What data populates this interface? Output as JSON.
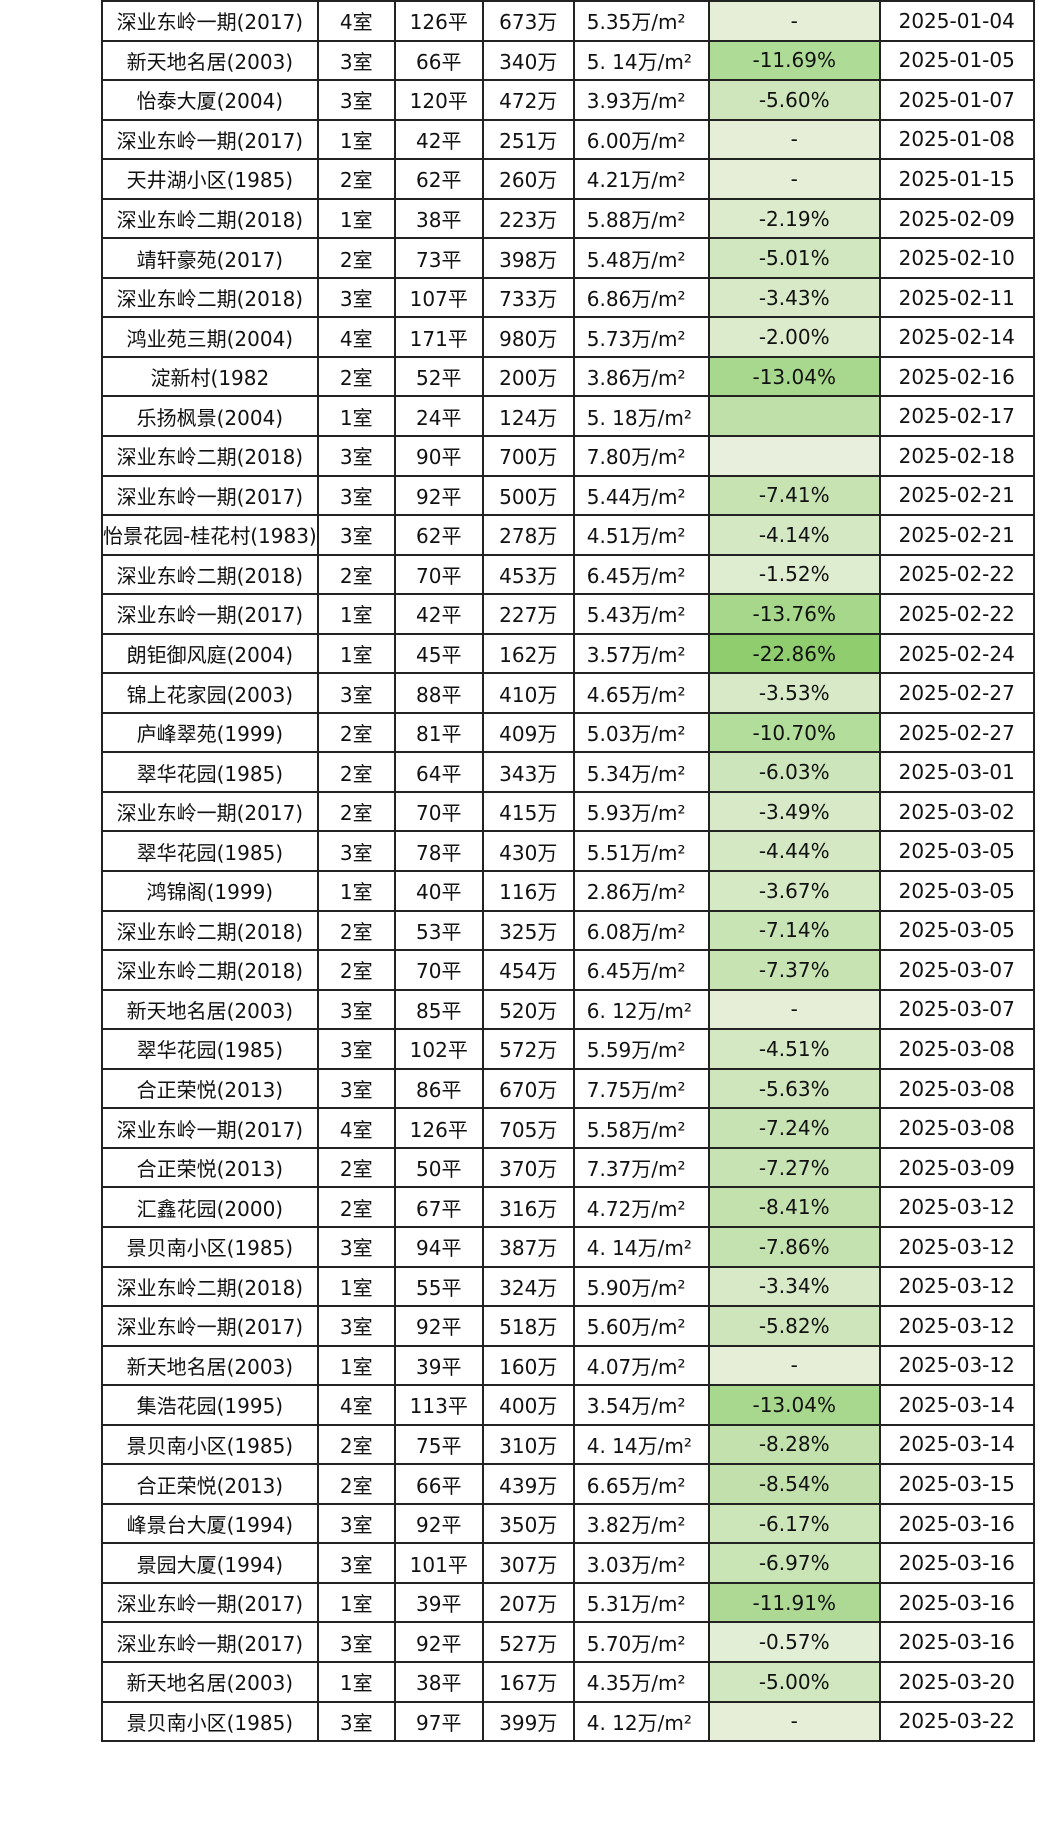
{
  "table": {
    "rows": [
      {
        "name": "深业东岭一期(2017)",
        "rooms": "4室",
        "area": "126平",
        "total": "673万",
        "unit_price": "5.35万/m²",
        "change": "-",
        "date": "2025-01-04",
        "change_color": "#e6eed8"
      },
      {
        "name": "新天地名居(2003)",
        "rooms": "3室",
        "area": "66平",
        "total": "340万",
        "unit_price": "5. 14万/m²",
        "change": "-11.69%",
        "date": "2025-01-05",
        "change_color": "#aedb95"
      },
      {
        "name": "怡泰大厦(2004)",
        "rooms": "3室",
        "area": "120平",
        "total": "472万",
        "unit_price": "3.93万/m²",
        "change": "-5.60%",
        "date": "2025-01-07",
        "change_color": "#cfe6bd"
      },
      {
        "name": "深业东岭一期(2017)",
        "rooms": "1室",
        "area": "42平",
        "total": "251万",
        "unit_price": "6.00万/m²",
        "change": "-",
        "date": "2025-01-08",
        "change_color": "#e6eed8"
      },
      {
        "name": "天井湖小区(1985)",
        "rooms": "2室",
        "area": "62平",
        "total": "260万",
        "unit_price": "4.21万/m²",
        "change": "-",
        "date": "2025-01-15",
        "change_color": "#e6eed8"
      },
      {
        "name": "深业东岭二期(2018)",
        "rooms": "1室",
        "area": "38平",
        "total": "223万",
        "unit_price": "5.88万/m²",
        "change": "-2.19%",
        "date": "2025-02-09",
        "change_color": "#dcebcc"
      },
      {
        "name": "靖轩豪苑(2017)",
        "rooms": "2室",
        "area": "73平",
        "total": "398万",
        "unit_price": "5.48万/m²",
        "change": "-5.01%",
        "date": "2025-02-10",
        "change_color": "#d1e7bf"
      },
      {
        "name": "深业东岭二期(2018)",
        "rooms": "3室",
        "area": "107平",
        "total": "733万",
        "unit_price": "6.86万/m²",
        "change": "-3.43%",
        "date": "2025-02-11",
        "change_color": "#d7e9c6"
      },
      {
        "name": "鸿业苑三期(2004)",
        "rooms": "4室",
        "area": "171平",
        "total": "980万",
        "unit_price": "5.73万/m²",
        "change": "-2.00%",
        "date": "2025-02-14",
        "change_color": "#dcebcc"
      },
      {
        "name": "淀新村(1982",
        "rooms": "2室",
        "area": "52平",
        "total": "200万",
        "unit_price": "3.86万/m²",
        "change": "-13.04%",
        "date": "2025-02-16",
        "change_color": "#a8d88d"
      },
      {
        "name": "乐扬枫景(2004)",
        "rooms": "1室",
        "area": "24平",
        "total": "124万",
        "unit_price": "5. 18万/m²",
        "change": "",
        "date": "2025-02-17",
        "change_color": "#bfe0a9"
      },
      {
        "name": "深业东岭二期(2018)",
        "rooms": "3室",
        "area": "90平",
        "total": "700万",
        "unit_price": "7.80万/m²",
        "change": "",
        "date": "2025-02-18",
        "change_color": "#e8efdc"
      },
      {
        "name": "深业东岭一期(2017)",
        "rooms": "3室",
        "area": "92平",
        "total": "500万",
        "unit_price": "5.44万/m²",
        "change": "-7.41%",
        "date": "2025-02-21",
        "change_color": "#c7e3b2"
      },
      {
        "name": "怡景花园-桂花村(1983)",
        "rooms": "3室",
        "area": "62平",
        "total": "278万",
        "unit_price": "4.51万/m²",
        "change": "-4.14%",
        "date": "2025-02-21",
        "change_color": "#d5e8c4"
      },
      {
        "name": "深业东岭二期(2018)",
        "rooms": "2室",
        "area": "70平",
        "total": "453万",
        "unit_price": "6.45万/m²",
        "change": "-1.52%",
        "date": "2025-02-22",
        "change_color": "#deecd0"
      },
      {
        "name": "深业东岭一期(2017)",
        "rooms": "1室",
        "area": "42平",
        "total": "227万",
        "unit_price": "5.43万/m²",
        "change": "-13.76%",
        "date": "2025-02-22",
        "change_color": "#a6d78b"
      },
      {
        "name": "朗钜御风庭(2004)",
        "rooms": "1室",
        "area": "45平",
        "total": "162万",
        "unit_price": "3.57万/m²",
        "change": "-22.86%",
        "date": "2025-02-24",
        "change_color": "#8fcd6e"
      },
      {
        "name": "锦上花家园(2003)",
        "rooms": "3室",
        "area": "88平",
        "total": "410万",
        "unit_price": "4.65万/m²",
        "change": "-3.53%",
        "date": "2025-02-27",
        "change_color": "#d7e9c6"
      },
      {
        "name": "庐峰翠苑(1999)",
        "rooms": "2室",
        "area": "81平",
        "total": "409万",
        "unit_price": "5.03万/m²",
        "change": "-10.70%",
        "date": "2025-02-27",
        "change_color": "#b3dd9b"
      },
      {
        "name": "翠华花园(1985)",
        "rooms": "2室",
        "area": "64平",
        "total": "343万",
        "unit_price": "5.34万/m²",
        "change": "-6.03%",
        "date": "2025-03-01",
        "change_color": "#cde5ba"
      },
      {
        "name": "深业东岭一期(2017)",
        "rooms": "2室",
        "area": "70平",
        "total": "415万",
        "unit_price": "5.93万/m²",
        "change": "-3.49%",
        "date": "2025-03-02",
        "change_color": "#d7e9c6"
      },
      {
        "name": "翠华花园(1985)",
        "rooms": "3室",
        "area": "78平",
        "total": "430万",
        "unit_price": "5.51万/m²",
        "change": "-4.44%",
        "date": "2025-03-05",
        "change_color": "#d4e8c3"
      },
      {
        "name": "鸿锦阁(1999)",
        "rooms": "1室",
        "area": "40平",
        "total": "116万",
        "unit_price": "2.86万/m²",
        "change": "-3.67%",
        "date": "2025-03-05",
        "change_color": "#d6e9c5"
      },
      {
        "name": "深业东岭二期(2018)",
        "rooms": "2室",
        "area": "53平",
        "total": "325万",
        "unit_price": "6.08万/m²",
        "change": "-7.14%",
        "date": "2025-03-05",
        "change_color": "#c8e3b4"
      },
      {
        "name": "深业东岭二期(2018)",
        "rooms": "2室",
        "area": "70平",
        "total": "454万",
        "unit_price": "6.45万/m²",
        "change": "-7.37%",
        "date": "2025-03-07",
        "change_color": "#c7e3b2"
      },
      {
        "name": "新天地名居(2003)",
        "rooms": "3室",
        "area": "85平",
        "total": "520万",
        "unit_price": "6. 12万/m²",
        "change": "-",
        "date": "2025-03-07",
        "change_color": "#e6eed8"
      },
      {
        "name": "翠华花园(1985)",
        "rooms": "3室",
        "area": "102平",
        "total": "572万",
        "unit_price": "5.59万/m²",
        "change": "-4.51%",
        "date": "2025-03-08",
        "change_color": "#d4e8c3"
      },
      {
        "name": "合正荣悦(2013)",
        "rooms": "3室",
        "area": "86平",
        "total": "670万",
        "unit_price": "7.75万/m²",
        "change": "-5.63%",
        "date": "2025-03-08",
        "change_color": "#cfe6bd"
      },
      {
        "name": "深业东岭一期(2017)",
        "rooms": "4室",
        "area": "126平",
        "total": "705万",
        "unit_price": "5.58万/m²",
        "change": "-7.24%",
        "date": "2025-03-08",
        "change_color": "#c8e3b3"
      },
      {
        "name": "合正荣悦(2013)",
        "rooms": "2室",
        "area": "50平",
        "total": "370万",
        "unit_price": "7.37万/m²",
        "change": "-7.27%",
        "date": "2025-03-09",
        "change_color": "#c8e3b3"
      },
      {
        "name": "汇鑫花园(2000)",
        "rooms": "2室",
        "area": "67平",
        "total": "316万",
        "unit_price": "4.72万/m²",
        "change": "-8.41%",
        "date": "2025-03-12",
        "change_color": "#c2e1ac"
      },
      {
        "name": "景贝南小区(1985)",
        "rooms": "3室",
        "area": "94平",
        "total": "387万",
        "unit_price": "4. 14万/m²",
        "change": "-7.86%",
        "date": "2025-03-12",
        "change_color": "#c4e2af"
      },
      {
        "name": "深业东岭二期(2018)",
        "rooms": "1室",
        "area": "55平",
        "total": "324万",
        "unit_price": "5.90万/m²",
        "change": "-3.34%",
        "date": "2025-03-12",
        "change_color": "#d7e9c7"
      },
      {
        "name": "深业东岭一期(2017)",
        "rooms": "3室",
        "area": "92平",
        "total": "518万",
        "unit_price": "5.60万/m²",
        "change": "-5.82%",
        "date": "2025-03-12",
        "change_color": "#cee5bb"
      },
      {
        "name": "新天地名居(2003)",
        "rooms": "1室",
        "area": "39平",
        "total": "160万",
        "unit_price": "4.07万/m²",
        "change": "-",
        "date": "2025-03-12",
        "change_color": "#e6eed8"
      },
      {
        "name": "集浩花园(1995)",
        "rooms": "4室",
        "area": "113平",
        "total": "400万",
        "unit_price": "3.54万/m²",
        "change": "-13.04%",
        "date": "2025-03-14",
        "change_color": "#a8d88d"
      },
      {
        "name": "景贝南小区(1985)",
        "rooms": "2室",
        "area": "75平",
        "total": "310万",
        "unit_price": "4. 14万/m²",
        "change": "-8.28%",
        "date": "2025-03-14",
        "change_color": "#c2e1ad"
      },
      {
        "name": "合正荣悦(2013)",
        "rooms": "2室",
        "area": "66平",
        "total": "439万",
        "unit_price": "6.65万/m²",
        "change": "-8.54%",
        "date": "2025-03-15",
        "change_color": "#c1e0ab"
      },
      {
        "name": "峰景台大厦(1994)",
        "rooms": "3室",
        "area": "92平",
        "total": "350万",
        "unit_price": "3.82万/m²",
        "change": "-6.17%",
        "date": "2025-03-16",
        "change_color": "#cce5b9"
      },
      {
        "name": "景园大厦(1994)",
        "rooms": "3室",
        "area": "101平",
        "total": "307万",
        "unit_price": "3.03万/m²",
        "change": "-6.97%",
        "date": "2025-03-16",
        "change_color": "#c9e4b5"
      },
      {
        "name": "深业东岭一期(2017)",
        "rooms": "1室",
        "area": "39平",
        "total": "207万",
        "unit_price": "5.31万/m²",
        "change": "-11.91%",
        "date": "2025-03-16",
        "change_color": "#add994"
      },
      {
        "name": "深业东岭一期(2017)",
        "rooms": "3室",
        "area": "92平",
        "total": "527万",
        "unit_price": "5.70万/m²",
        "change": "-0.57%",
        "date": "2025-03-16",
        "change_color": "#e2eed6"
      },
      {
        "name": "新天地名居(2003)",
        "rooms": "1室",
        "area": "38平",
        "total": "167万",
        "unit_price": "4.35万/m²",
        "change": "-5.00%",
        "date": "2025-03-20",
        "change_color": "#d1e7bf"
      },
      {
        "name": "景贝南小区(1985)",
        "rooms": "3室",
        "area": "97平",
        "total": "399万",
        "unit_price": "4. 12万/m²",
        "change": "-",
        "date": "2025-03-22",
        "change_color": "#e6eed8"
      }
    ]
  }
}
